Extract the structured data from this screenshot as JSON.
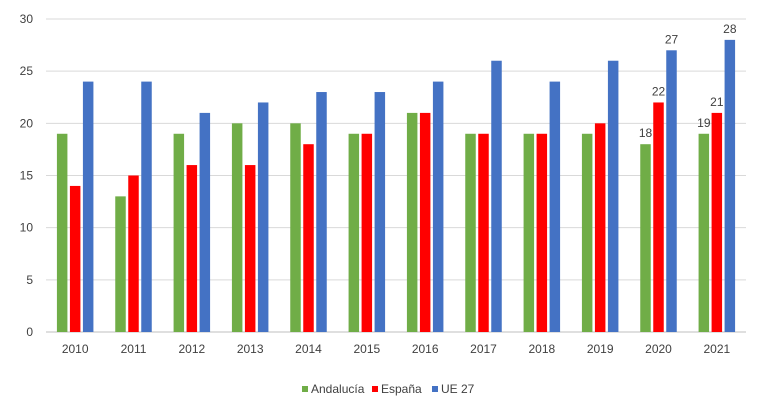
{
  "chart_data": {
    "type": "bar",
    "categories": [
      "2010",
      "2011",
      "2012",
      "2013",
      "2014",
      "2015",
      "2016",
      "2017",
      "2018",
      "2019",
      "2020",
      "2021"
    ],
    "series": [
      {
        "name": "Andalucía",
        "color": "#70ad47",
        "values": [
          19,
          13,
          19,
          20,
          20,
          19,
          21,
          19,
          19,
          19,
          18,
          19
        ]
      },
      {
        "name": "España",
        "color": "#ff0000",
        "values": [
          14,
          15,
          16,
          16,
          18,
          19,
          21,
          19,
          19,
          20,
          22,
          21
        ]
      },
      {
        "name": "UE 27",
        "color": "#4472c4",
        "values": [
          24,
          24,
          21,
          22,
          23,
          23,
          24,
          26,
          24,
          26,
          27,
          28
        ]
      }
    ],
    "data_labels": [
      {
        "category_index": 10,
        "series_index": 0,
        "text": "18"
      },
      {
        "category_index": 10,
        "series_index": 1,
        "text": "22"
      },
      {
        "category_index": 10,
        "series_index": 2,
        "text": "27"
      },
      {
        "category_index": 11,
        "series_index": 0,
        "text": "19"
      },
      {
        "category_index": 11,
        "series_index": 1,
        "text": "21"
      },
      {
        "category_index": 11,
        "series_index": 2,
        "text": "28"
      }
    ],
    "y_ticks": [
      "0",
      "5",
      "10",
      "15",
      "20",
      "25",
      "30"
    ],
    "ylim": [
      0,
      30
    ],
    "grid": true,
    "legend_position": "bottom",
    "title": "",
    "xlabel": "",
    "ylabel": ""
  }
}
